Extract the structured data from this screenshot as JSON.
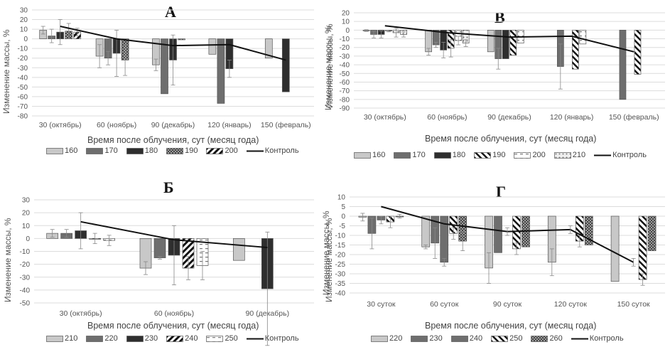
{
  "figure": {
    "shared_ylabel": "Изменение массы, %",
    "shared_xlabel": "Время после облучения, сут (месяц года)"
  },
  "chart_data": [
    {
      "id": "A",
      "type": "bar",
      "title": "А",
      "ylabel": "Изменение массы, %",
      "xlabel": "Время после облучения, сут (месяц года)",
      "ylim": [
        -80,
        30
      ],
      "yticks": [
        30,
        20,
        10,
        0,
        -10,
        -20,
        -30,
        -40,
        -50,
        -60,
        -70,
        -80
      ],
      "grid": true,
      "legend_position": "bottom",
      "categories": [
        "30 (октябрь)",
        "60 (ноябрь)",
        "90 (декабрь)",
        "120 (январь)",
        "150 (февраль)"
      ],
      "series": [
        {
          "name": "160",
          "pattern": "light",
          "values": [
            9,
            -18,
            -27,
            -16,
            -20
          ],
          "errors": [
            4,
            12,
            6,
            null,
            null
          ]
        },
        {
          "name": "170",
          "pattern": "mid",
          "values": [
            3,
            -20,
            -57,
            -67,
            null
          ],
          "errors": [
            7,
            7,
            null,
            null,
            null
          ]
        },
        {
          "name": "180",
          "pattern": "dark",
          "values": [
            7,
            -15,
            -22,
            -31,
            -55
          ],
          "errors": [
            13,
            24,
            26,
            9,
            null
          ]
        },
        {
          "name": "190",
          "pattern": "dots",
          "values": [
            8,
            -22,
            -1,
            null,
            null
          ],
          "errors": [
            8,
            16,
            null,
            null,
            null
          ]
        },
        {
          "name": "200",
          "pattern": "diag",
          "values": [
            7,
            null,
            null,
            null,
            null
          ],
          "errors": [
            4,
            null,
            null,
            null,
            null
          ]
        }
      ],
      "line": {
        "name": "Контроль",
        "values": [
          13,
          0,
          -7,
          -6,
          -22
        ]
      }
    },
    {
      "id": "B",
      "type": "bar",
      "title": "В",
      "ylabel": "Изменение массы, %",
      "xlabel": "Время после облучения, сут (месяц года)",
      "ylim": [
        -90,
        20
      ],
      "yticks": [
        20,
        10,
        0,
        -10,
        -20,
        -30,
        -40,
        -50,
        -60,
        -70,
        -80,
        -90
      ],
      "grid": true,
      "legend_position": "bottom",
      "categories": [
        "30 (октябрь)",
        "60 (ноябрь)",
        "90 (декабрь)",
        "120 (январь)",
        "150 (февраль)"
      ],
      "series": [
        {
          "name": "160",
          "pattern": "light",
          "values": [
            -0.5,
            -25,
            -25,
            null,
            null
          ],
          "errors": [
            1,
            4,
            null,
            null,
            null
          ]
        },
        {
          "name": "170",
          "pattern": "mid",
          "values": [
            -5,
            -17,
            -33,
            -42,
            -80
          ],
          "errors": [
            4,
            3,
            12,
            26,
            null
          ]
        },
        {
          "name": "180",
          "pattern": "dark",
          "values": [
            -5,
            -23,
            -33,
            null,
            null
          ],
          "errors": [
            4,
            9,
            null,
            null,
            null
          ]
        },
        {
          "name": "190",
          "pattern": "diag2",
          "values": [
            -1,
            -21,
            -29,
            -45,
            -51
          ],
          "errors": [
            1,
            10,
            null,
            null,
            null
          ]
        },
        {
          "name": "200",
          "pattern": "dash",
          "values": [
            -3,
            -12,
            -15,
            -16,
            null
          ],
          "errors": [
            5,
            5,
            null,
            null,
            null
          ]
        },
        {
          "name": "210",
          "pattern": "dots2",
          "values": [
            -5,
            -15,
            null,
            null,
            null
          ],
          "errors": [
            3,
            4,
            null,
            null,
            null
          ]
        }
      ],
      "line": {
        "name": "Контроль",
        "values": [
          5,
          -3,
          -8,
          -7,
          -25
        ]
      }
    },
    {
      "id": "Б",
      "type": "bar",
      "title": "Б",
      "ylabel": "Изменение массы, %",
      "xlabel": "Время после облучения, сут (месяц года)",
      "ylim": [
        -50,
        30
      ],
      "yticks": [
        30,
        20,
        10,
        0,
        -10,
        -20,
        -30,
        -40,
        -50
      ],
      "grid": true,
      "legend_position": "bottom",
      "categories": [
        "30 (октябрь)",
        "60 (ноябрь)",
        "90 (декабрь)"
      ],
      "series": [
        {
          "name": "210",
          "pattern": "light",
          "values": [
            4,
            -23,
            -17
          ],
          "errors": [
            3,
            5,
            null
          ]
        },
        {
          "name": "220",
          "pattern": "mid",
          "values": [
            4,
            -15,
            null
          ],
          "errors": [
            3,
            1,
            null
          ]
        },
        {
          "name": "230",
          "pattern": "dark",
          "values": [
            6,
            -13,
            -39
          ],
          "errors": [
            14,
            23,
            44
          ]
        },
        {
          "name": "240",
          "pattern": "diag",
          "values": [
            0,
            -23,
            null
          ],
          "errors": [
            4,
            9,
            null
          ]
        },
        {
          "name": "250",
          "pattern": "dash",
          "values": [
            -1.5,
            -21,
            null
          ],
          "errors": [
            4,
            11,
            null
          ]
        }
      ],
      "line": {
        "name": "Контроль",
        "values": [
          13,
          -1,
          -7
        ]
      }
    },
    {
      "id": "Г",
      "type": "bar",
      "title": "Г",
      "ylabel": "Изменение массы, %",
      "xlabel": "Время после облучения, сут (месяц года)",
      "ylim": [
        -40,
        10
      ],
      "yticks": [
        10,
        5,
        0,
        -5,
        -10,
        -15,
        -20,
        -25,
        -30,
        -35,
        -40
      ],
      "grid": true,
      "legend_position": "bottom",
      "categories": [
        "30 суток",
        "60 суток",
        "90 суток",
        "120 суток",
        "150 суток"
      ],
      "series": [
        {
          "name": "220",
          "pattern": "light",
          "values": [
            -0.5,
            -16,
            -27,
            -24,
            -34
          ],
          "errors": [
            2,
            1,
            8,
            7,
            null
          ]
        },
        {
          "name": "230",
          "pattern": "mid",
          "values": [
            -9,
            -14,
            -19,
            null,
            null
          ],
          "errors": [
            8,
            8,
            null,
            null,
            null
          ]
        },
        {
          "name": "240",
          "pattern": "mid",
          "values": [
            -2,
            -24,
            null,
            null,
            null
          ],
          "errors": [
            2,
            2,
            null,
            null,
            null
          ]
        },
        {
          "name": "250",
          "pattern": "diag2",
          "values": [
            -3,
            -9,
            -17,
            -13,
            -33
          ],
          "errors": [
            3,
            3,
            3,
            3,
            3
          ]
        },
        {
          "name": "260",
          "pattern": "dots",
          "values": [
            0,
            -13,
            -16,
            -15,
            -18
          ],
          "errors": [
            1,
            5,
            null,
            null,
            null
          ]
        }
      ],
      "line": {
        "name": "Контроль",
        "values": [
          5,
          -4,
          -8,
          -7,
          -24
        ],
        "errors": [
          null,
          null,
          2,
          2,
          2
        ]
      }
    }
  ]
}
